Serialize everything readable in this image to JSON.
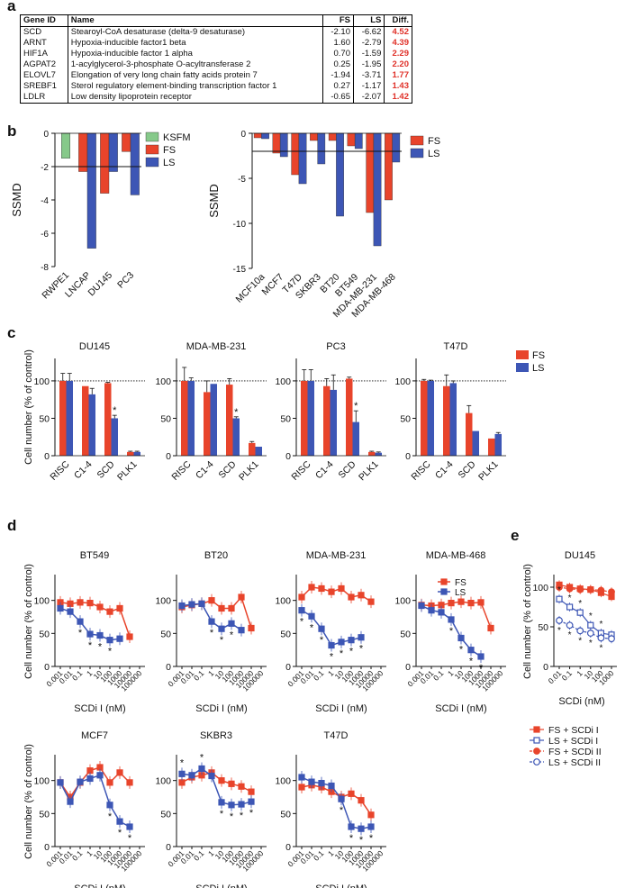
{
  "panels": {
    "a": "a",
    "b": "b",
    "c": "c",
    "d": "d",
    "e": "e"
  },
  "colors": {
    "fs": "#e8442b",
    "ls": "#3d56b5",
    "ksfm": "#86c98a",
    "red": "#e0322a"
  },
  "table": {
    "headers": [
      "Gene ID",
      "Name",
      "FS",
      "LS",
      "Diff."
    ],
    "rows": [
      [
        "SCD",
        "Stearoyl-CoA desaturase (delta-9 desaturase)",
        "-2.10",
        "-6.62",
        "4.52"
      ],
      [
        "ARNT",
        "Hypoxia-inducible factor1 beta",
        "1.60",
        "-2.79",
        "4.39"
      ],
      [
        "HIF1A",
        "Hypoxia-inducible factor 1 alpha",
        "0.70",
        "-1.59",
        "2.29"
      ],
      [
        "AGPAT2",
        "1-acylglycerol-3-phosphate O-acyltransferase 2",
        "0.25",
        "-1.95",
        "2.20"
      ],
      [
        "ELOVL7",
        "Elongation of very long chain fatty acids protein 7",
        "-1.94",
        "-3.71",
        "1.77"
      ],
      [
        "SREBF1",
        "Sterol regulatory element-binding transcription factor 1",
        "0.27",
        "-1.17",
        "1.43"
      ],
      [
        "LDLR",
        "Low density lipoprotein receptor",
        "-0.65",
        "-2.07",
        "1.42"
      ]
    ]
  },
  "chart_data": [
    {
      "id": "b1",
      "type": "bar",
      "ylabel": "SSMD",
      "ylim": [
        -8,
        0
      ],
      "yticks": [
        0,
        -2,
        -4,
        -6,
        -8
      ],
      "threshold": -2,
      "categories": [
        "RWPE1",
        "LNCAP",
        "DU145",
        "PC3"
      ],
      "series": [
        {
          "name": "KSFM",
          "key": "ksfm",
          "values": [
            -1.5,
            null,
            null,
            null
          ]
        },
        {
          "name": "FS",
          "key": "fs",
          "values": [
            null,
            -2.3,
            -3.6,
            -1.1
          ]
        },
        {
          "name": "LS",
          "key": "ls",
          "values": [
            null,
            -6.9,
            -2.3,
            -3.7
          ]
        }
      ],
      "legend": [
        "KSFM",
        "FS",
        "LS"
      ]
    },
    {
      "id": "b2",
      "type": "bar",
      "ylabel": "SSMD",
      "ylim": [
        -15,
        0
      ],
      "yticks": [
        0,
        -5,
        -10,
        -15
      ],
      "threshold": -2,
      "categories": [
        "MCF10a",
        "MCF7",
        "T47D",
        "SKBR3",
        "BT20",
        "BT549",
        "MDA-MB-231",
        "MDA-MB-468"
      ],
      "series": [
        {
          "name": "FS",
          "key": "fs",
          "values": [
            -0.5,
            -2.2,
            -4.6,
            -0.8,
            -0.8,
            -1.4,
            -8.8,
            -7.4
          ]
        },
        {
          "name": "LS",
          "key": "ls",
          "values": [
            -0.6,
            -2.6,
            -5.6,
            -3.4,
            -9.2,
            -1.7,
            -12.5,
            -3.2
          ]
        }
      ],
      "legend": [
        "FS",
        "LS"
      ]
    },
    {
      "id": "c",
      "type": "bar",
      "ylabel": "Cell number (% of control)",
      "ylim": [
        0,
        130
      ],
      "yticks": [
        0,
        50,
        100
      ],
      "categories": [
        "RISC",
        "C1-4",
        "SCD",
        "PLK1"
      ],
      "legend": [
        "FS",
        "LS"
      ],
      "panels": [
        {
          "title": "DU145",
          "fs": [
            100,
            93,
            97,
            5
          ],
          "ls": [
            100,
            82,
            50,
            5
          ],
          "fs_err": [
            10,
            0,
            1,
            1
          ],
          "ls_err": [
            10,
            8,
            4,
            1
          ],
          "star": 2
        },
        {
          "title": "MDA-MB-231",
          "fs": [
            100,
            85,
            95,
            17
          ],
          "ls": [
            100,
            96,
            50,
            12
          ],
          "fs_err": [
            18,
            15,
            8,
            2
          ],
          "ls_err": [
            4,
            0,
            2,
            0
          ],
          "star": 2
        },
        {
          "title": "PC3",
          "fs": [
            100,
            93,
            103,
            5
          ],
          "ls": [
            100,
            88,
            45,
            4
          ],
          "fs_err": [
            15,
            10,
            2,
            1
          ],
          "ls_err": [
            15,
            20,
            15,
            1
          ],
          "star": 2
        },
        {
          "title": "T47D",
          "fs": [
            100,
            93,
            57,
            23
          ],
          "ls": [
            100,
            97,
            33,
            29
          ],
          "fs_err": [
            2,
            15,
            10,
            0
          ],
          "ls_err": [
            1,
            3,
            0,
            2
          ],
          "star": -1
        }
      ]
    },
    {
      "id": "d",
      "type": "line",
      "xlabel": "SCDi I (nM)",
      "ylabel": "Cell number (% of control)",
      "ylim": [
        0,
        150
      ],
      "yticks": [
        0,
        50,
        100
      ],
      "x": [
        0.001,
        0.01,
        0.1,
        1,
        10,
        100,
        1000,
        10000,
        100000
      ],
      "xticklabels": [
        "0.001",
        "0.01",
        "0.1",
        "1",
        "10",
        "100",
        "1000",
        "10000",
        "100000"
      ],
      "legend": [
        "FS",
        "LS"
      ],
      "panels": [
        {
          "title": "BT549",
          "fs": [
            97,
            95,
            97,
            96,
            90,
            83,
            88,
            45
          ],
          "ls": [
            88,
            83,
            68,
            49,
            47,
            40,
            42,
            null
          ],
          "stars": [
            2,
            3,
            4,
            5
          ]
        },
        {
          "title": "BT20",
          "fs": [
            90,
            93,
            95,
            100,
            88,
            88,
            105,
            58
          ],
          "ls": [
            92,
            94,
            95,
            68,
            57,
            65,
            55,
            null
          ],
          "stars": [
            3,
            4,
            5
          ]
        },
        {
          "title": "MDA-MB-231",
          "fs": [
            105,
            120,
            118,
            113,
            118,
            105,
            108,
            98
          ],
          "ls": [
            85,
            76,
            57,
            32,
            37,
            40,
            44,
            null
          ],
          "stars": [
            0,
            1,
            2,
            3,
            4,
            5,
            6
          ]
        },
        {
          "title": "MDA-MB-468",
          "fs": [
            93,
            92,
            93,
            96,
            98,
            96,
            97,
            58
          ],
          "ls": [
            92,
            85,
            82,
            71,
            43,
            25,
            15,
            null
          ],
          "stars": [
            3,
            4,
            5,
            6
          ]
        },
        {
          "title": "MCF7",
          "fs": [
            97,
            75,
            97,
            115,
            120,
            97,
            112,
            97
          ],
          "ls": [
            97,
            68,
            98,
            103,
            108,
            63,
            38,
            30
          ],
          "stars": [
            5,
            6,
            7
          ]
        },
        {
          "title": "SKBR3",
          "fs": [
            97,
            105,
            108,
            112,
            100,
            95,
            91,
            83
          ],
          "ls": [
            110,
            108,
            118,
            107,
            67,
            63,
            64,
            68
          ],
          "stars": [
            0,
            2,
            4,
            5,
            6,
            7
          ]
        },
        {
          "title": "T47D",
          "fs": [
            90,
            93,
            90,
            83,
            75,
            80,
            70,
            48
          ],
          "ls": [
            105,
            98,
            96,
            92,
            72,
            30,
            27,
            30
          ],
          "stars": [
            4,
            5,
            6,
            7
          ]
        }
      ]
    },
    {
      "id": "e",
      "type": "line",
      "title": "DU145",
      "xlabel": "SCDi (nM)",
      "ylabel": "Cell number (% of control)",
      "ylim": [
        0,
        125
      ],
      "yticks": [
        0,
        50,
        100
      ],
      "x": [
        0.01,
        0.1,
        1,
        10,
        100,
        1000
      ],
      "xticklabels": [
        "0.01",
        "0.1",
        "1",
        "10",
        "100",
        "1000"
      ],
      "series": [
        {
          "name": "FS + SCDi I",
          "key": "fs",
          "open": false,
          "square": true,
          "values": [
            103,
            100,
            98,
            97,
            93,
            88
          ]
        },
        {
          "name": "LS + SCDi I",
          "key": "ls",
          "open": true,
          "square": true,
          "values": [
            85,
            75,
            68,
            52,
            42,
            40
          ]
        },
        {
          "name": "FS + SCDi II",
          "key": "fs",
          "open": false,
          "square": false,
          "values": [
            100,
            98,
            97,
            97,
            96,
            94
          ]
        },
        {
          "name": "LS + SCDi II",
          "key": "ls",
          "open": true,
          "square": false,
          "values": [
            58,
            52,
            45,
            42,
            36,
            35
          ]
        }
      ]
    }
  ]
}
